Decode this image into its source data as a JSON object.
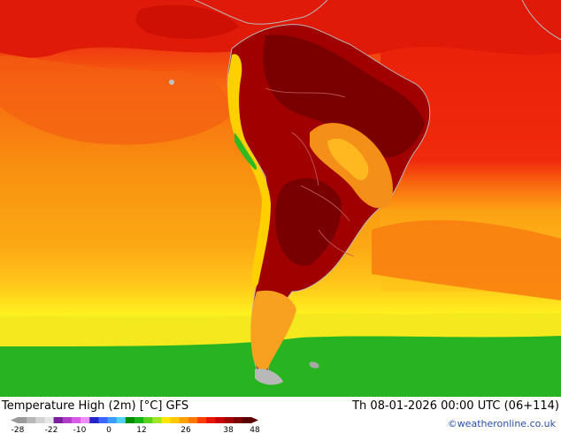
{
  "header": {
    "title": "Temperature High (2m) [°C] GFS",
    "valid_time": "Th 08-01-2026 00:00 UTC (06+114)",
    "credit": "©weatheronline.co.uk"
  },
  "legend": {
    "ticks": [
      "-28",
      "-22",
      "-10",
      "0",
      "12",
      "26",
      "38",
      "48"
    ],
    "colors": [
      "#9a9a9a",
      "#b7b7b7",
      "#d2d2d2",
      "#e6e6e6",
      "#7a1fa0",
      "#b03cc8",
      "#d85ae8",
      "#f08cf5",
      "#2424c8",
      "#3c64ff",
      "#3c9cff",
      "#50d2f0",
      "#008c00",
      "#14b414",
      "#5ad21e",
      "#a0e628",
      "#ffe600",
      "#ffc800",
      "#ffa000",
      "#ff7800",
      "#ff3c00",
      "#e61400",
      "#c80000",
      "#a00000",
      "#7d0000",
      "#5a0000"
    ]
  },
  "palette": {
    "ocean_warm": "#f04010",
    "ocean_orange": "#f8900c",
    "ocean_yellow": "#ffe000",
    "cool_green": "#30b820",
    "land_hot": "#a00000",
    "land_very_hot": "#7a0000",
    "andes": "#ffd000",
    "coast_outline": "#b8b8b8"
  }
}
